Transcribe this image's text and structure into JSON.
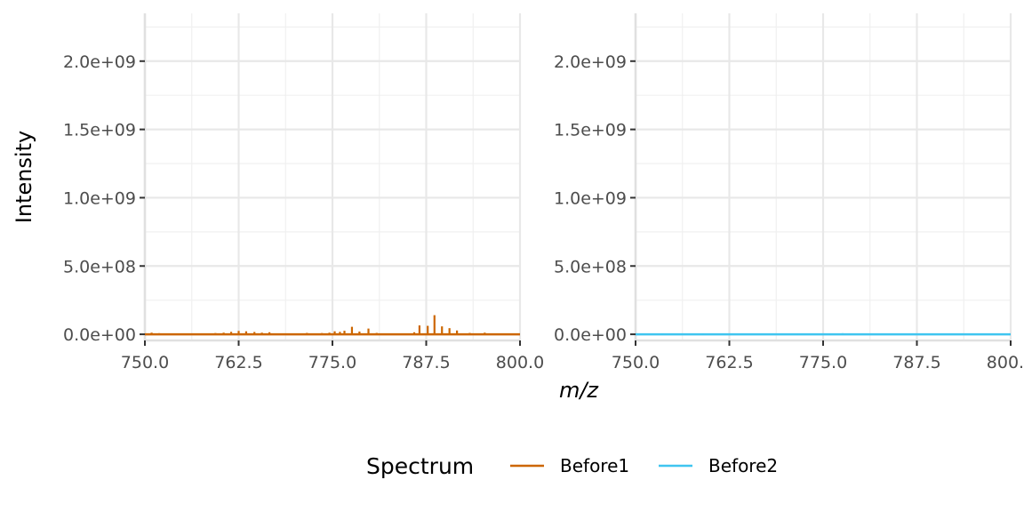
{
  "chart_data": {
    "type": "line",
    "xlabel": "m/z",
    "ylabel": "Intensity",
    "xlim": [
      750,
      800
    ],
    "ylim": [
      -45000000,
      2350000000
    ],
    "x_ticks": [
      "750.0",
      "762.5",
      "775.0",
      "787.5",
      "800.0"
    ],
    "x_tick_values": [
      750,
      762.5,
      775,
      787.5,
      800
    ],
    "y_ticks": [
      "0.0e+00",
      "5.0e+08",
      "1.0e+09",
      "1.5e+09",
      "2.0e+09"
    ],
    "y_tick_values": [
      0,
      500000000,
      1000000000,
      1500000000,
      2000000000
    ],
    "grid": true,
    "legend": {
      "title": "Spectrum",
      "position": "bottom",
      "entries": [
        {
          "label": "Before1",
          "color": "#cc6600"
        },
        {
          "label": "Before2",
          "color": "#3fc5f0"
        }
      ]
    },
    "panels": [
      {
        "series": "Before1",
        "color": "#cc6600",
        "peaks": [
          [
            750.9,
            12000000
          ],
          [
            751.9,
            8000000
          ],
          [
            756.6,
            6000000
          ],
          [
            757.6,
            5000000
          ],
          [
            759.4,
            9000000
          ],
          [
            760.5,
            12000000
          ],
          [
            761.5,
            18000000
          ],
          [
            762.5,
            25000000
          ],
          [
            763.5,
            22000000
          ],
          [
            764.6,
            17000000
          ],
          [
            765.6,
            12000000
          ],
          [
            766.6,
            15000000
          ],
          [
            768.6,
            7000000
          ],
          [
            771.6,
            10000000
          ],
          [
            772.6,
            7000000
          ],
          [
            773.6,
            9000000
          ],
          [
            774.6,
            12000000
          ],
          [
            775.3,
            22000000
          ],
          [
            776.0,
            18000000
          ],
          [
            776.6,
            26000000
          ],
          [
            777.6,
            55000000
          ],
          [
            778.6,
            20000000
          ],
          [
            779.8,
            42000000
          ],
          [
            780.9,
            10000000
          ],
          [
            785.9,
            15000000
          ],
          [
            786.6,
            65000000
          ],
          [
            787.7,
            62000000
          ],
          [
            788.6,
            140000000
          ],
          [
            789.6,
            58000000
          ],
          [
            790.6,
            45000000
          ],
          [
            791.6,
            28000000
          ],
          [
            793.3,
            10000000
          ],
          [
            795.3,
            12000000
          ],
          [
            797.3,
            6000000
          ]
        ]
      },
      {
        "series": "Before2",
        "color": "#3fc5f0",
        "peaks": [
          [
            753.6,
            4000000
          ],
          [
            759.0,
            3000000
          ],
          [
            762.6,
            3000000
          ],
          [
            771.6,
            3000000
          ],
          [
            775.0,
            5000000
          ],
          [
            776.0,
            4000000
          ],
          [
            777.6,
            8000000
          ],
          [
            778.6,
            4000000
          ],
          [
            789.6,
            2000000
          ]
        ]
      }
    ]
  }
}
